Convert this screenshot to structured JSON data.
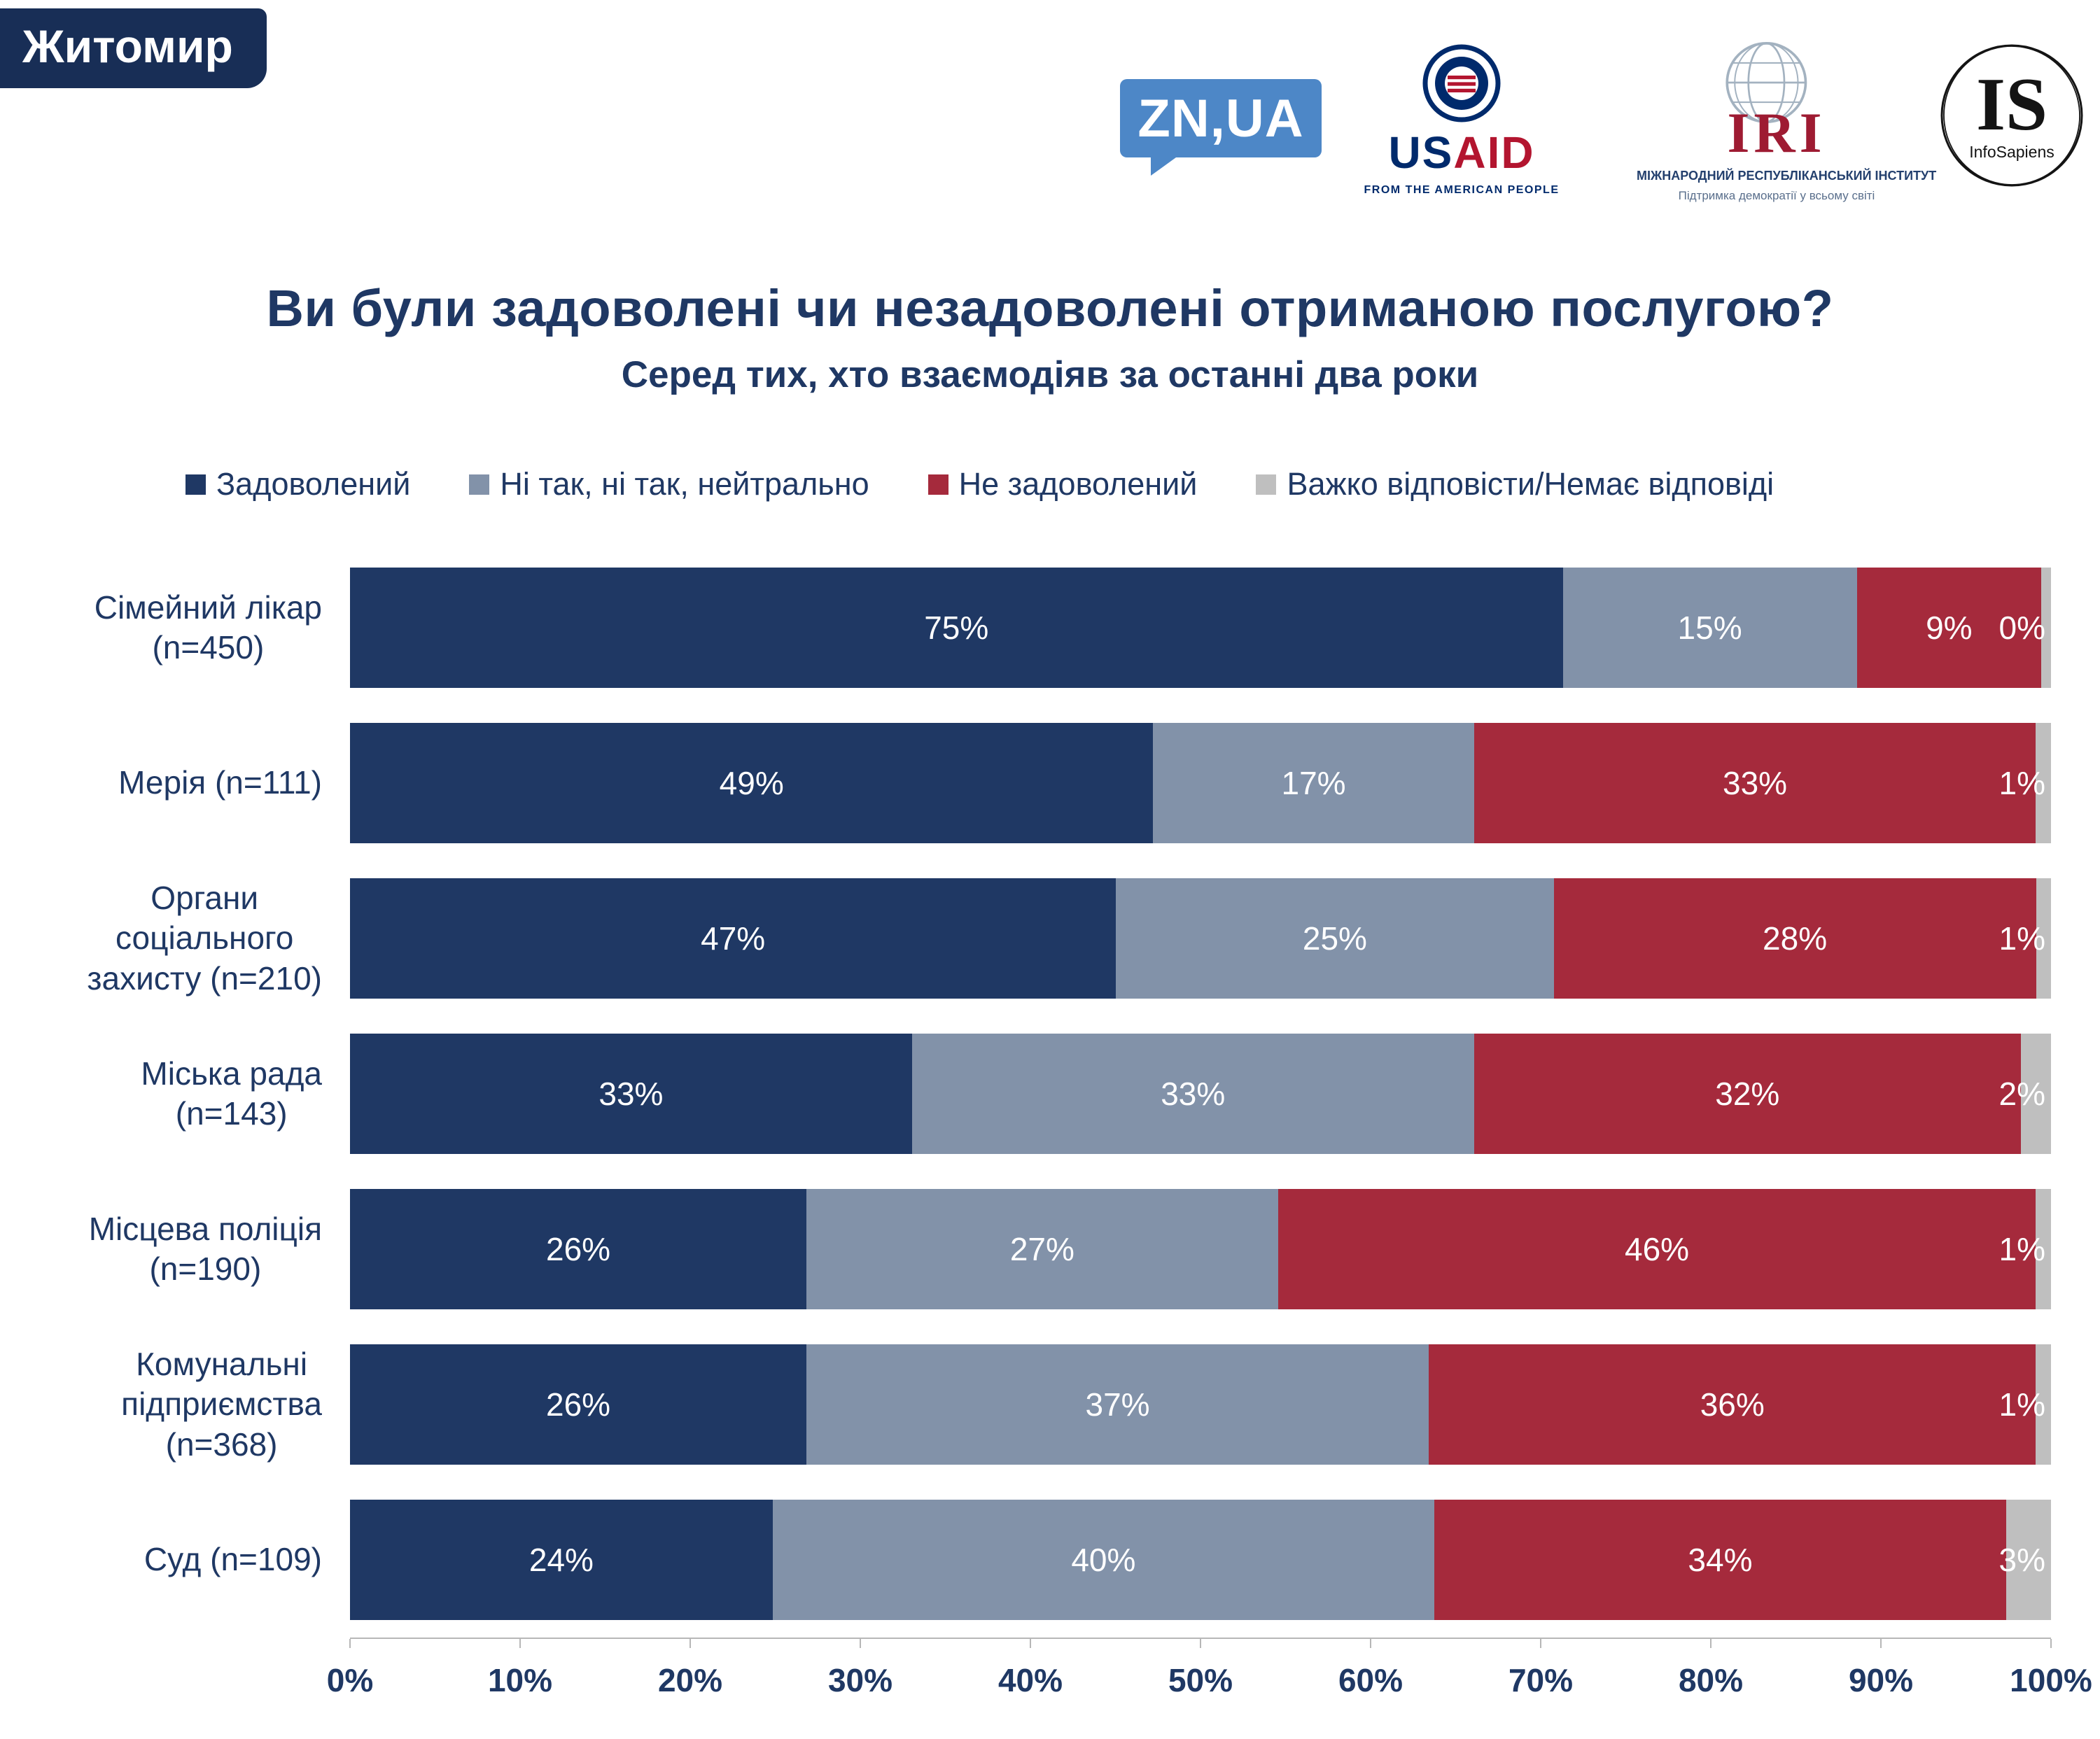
{
  "badge": {
    "label": "Житомир"
  },
  "logos": {
    "znua": {
      "text": "ZN,UA"
    },
    "usaid": {
      "name_us": "US",
      "name_aid": "AID",
      "tagline": "FROM THE AMERICAN PEOPLE"
    },
    "iri": {
      "abbr": "IRI",
      "line1": "МІЖНАРОДНИЙ РЕСПУБЛІКАНСЬКИЙ ІНСТИТУТ",
      "line2": "Підтримка демократії у всьому світі"
    },
    "infosapiens": {
      "abbr": "IS",
      "name": "InfoSapiens"
    }
  },
  "chart_data": {
    "type": "bar",
    "stacked": true,
    "orientation": "horizontal",
    "title": "Ви були задоволені чи незадоволені отриманою послугою?",
    "subtitle": "Серед тих, хто взаємодіяв за останні два роки",
    "legend": [
      {
        "label": "Задоволений",
        "color": "#1f3864"
      },
      {
        "label": "Ні так, ні так, нейтрально",
        "color": "#8292a9"
      },
      {
        "label": "Не задоволений",
        "color": "#a52a3c"
      },
      {
        "label": "Важко відповісти/Немає відповіді",
        "color": "#bfbfbf"
      }
    ],
    "categories": [
      "Сімейний лікар\n(n=450)",
      "Мерія (n=111)",
      "Органи\nсоціального\nзахисту (n=210)",
      "Міська рада\n(n=143)",
      "Місцева поліція\n(n=190)",
      "Комунальні\nпідприємства\n(n=368)",
      "Суд (n=109)"
    ],
    "series": [
      {
        "name": "Задоволений",
        "values": [
          75,
          49,
          47,
          33,
          26,
          26,
          24
        ]
      },
      {
        "name": "Ні так, ні так, нейтрально",
        "values": [
          15,
          17,
          25,
          33,
          27,
          37,
          40
        ]
      },
      {
        "name": "Не задоволений",
        "values": [
          9,
          33,
          28,
          32,
          46,
          36,
          34
        ]
      },
      {
        "name": "Важко відповісти/Немає відповіді",
        "values": [
          0,
          1,
          1,
          2,
          1,
          1,
          3
        ]
      }
    ],
    "x_axis": {
      "range": [
        0,
        100
      ],
      "ticks": [
        "0%",
        "10%",
        "20%",
        "30%",
        "40%",
        "50%",
        "60%",
        "70%",
        "80%",
        "90%",
        "100%"
      ]
    }
  }
}
